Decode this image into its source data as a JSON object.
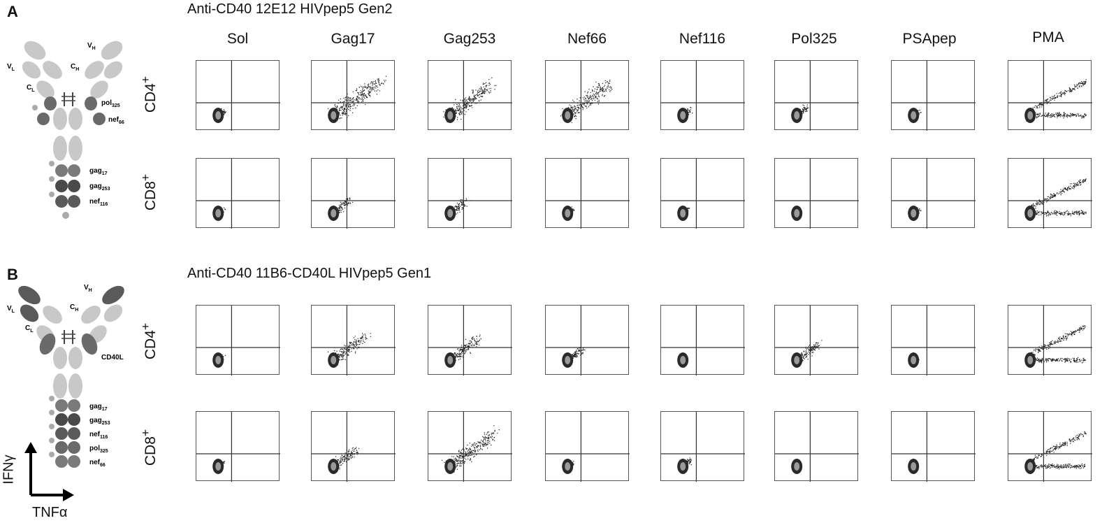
{
  "figure": {
    "panels": [
      {
        "letter": "A",
        "title": "Anti-CD40 12E12 HIVpep5 Gen2",
        "antibody_labels": {
          "vl": "V",
          "vl_sub": "L",
          "vh": "V",
          "vh_sub": "H",
          "cl": "C",
          "cl_sub": "L",
          "ch": "C",
          "ch_sub": "H",
          "side_top": "pol",
          "side_top_sub": "325",
          "side_bottom": "nef",
          "side_bottom_sub": "66",
          "tail": [
            {
              "name": "gag",
              "sub": "17"
            },
            {
              "name": "gag",
              "sub": "253"
            },
            {
              "name": "nef",
              "sub": "116"
            }
          ]
        },
        "rows": [
          {
            "label": "CD4",
            "sup": "+"
          },
          {
            "label": "CD8",
            "sup": "+"
          }
        ]
      },
      {
        "letter": "B",
        "title": "Anti-CD40 11B6-CD40L HIVpep5 Gen1",
        "antibody_labels": {
          "vl": "V",
          "vl_sub": "L",
          "vh": "V",
          "vh_sub": "H",
          "cl": "C",
          "cl_sub": "L",
          "ch": "C",
          "ch_sub": "H",
          "side_top": "CD40L",
          "side_top_sub": "",
          "side_bottom": "",
          "side_bottom_sub": "",
          "tail": [
            {
              "name": "gag",
              "sub": "17"
            },
            {
              "name": "gag",
              "sub": "253"
            },
            {
              "name": "nef",
              "sub": "116"
            },
            {
              "name": "pol",
              "sub": "325"
            },
            {
              "name": "nef",
              "sub": "66"
            }
          ]
        },
        "rows": [
          {
            "label": "CD4",
            "sup": "+"
          },
          {
            "label": "CD8",
            "sup": "+"
          }
        ]
      }
    ],
    "columns": [
      "Sol",
      "Gag17",
      "Gag253",
      "Nef66",
      "Nef116",
      "Pol325",
      "PSApep",
      "PMA"
    ],
    "axes": {
      "y": "IFNγ",
      "x": "TNFα"
    },
    "colors": {
      "light_domain": "#c8c8c8",
      "mid_domain": "#8a8a8a",
      "dark_domain": "#5a5a5a",
      "dots": "#222222",
      "gate": "#333333"
    }
  },
  "chart_data": {
    "type": "scatter",
    "description_axes": {
      "x": "TNFα",
      "y": "IFNγ"
    },
    "response_level": {
      "A": {
        "CD4+": {
          "Sol": 0.1,
          "Gag17": 0.9,
          "Gag253": 0.8,
          "Nef66": 0.8,
          "Nef116": 0.15,
          "Pol325": 0.2,
          "PSApep": 0.1,
          "PMA": 0.95
        },
        "CD8+": {
          "Sol": 0.1,
          "Gag17": 0.3,
          "Gag253": 0.3,
          "Nef66": 0.1,
          "Nef116": 0.1,
          "Pol325": 0.05,
          "PSApep": 0.1,
          "PMA": 0.95
        }
      },
      "B": {
        "CD4+": {
          "Sol": 0.1,
          "Gag17": 0.6,
          "Gag253": 0.55,
          "Nef66": 0.3,
          "Nef116": 0.05,
          "Pol325": 0.4,
          "PSApep": 0.05,
          "PMA": 0.95
        },
        "CD8+": {
          "Sol": 0.1,
          "Gag17": 0.45,
          "Gag253": 0.85,
          "Nef66": 0.1,
          "Nef116": 0.15,
          "Pol325": 0.05,
          "PSApep": 0.05,
          "PMA": 0.9
        }
      }
    }
  }
}
